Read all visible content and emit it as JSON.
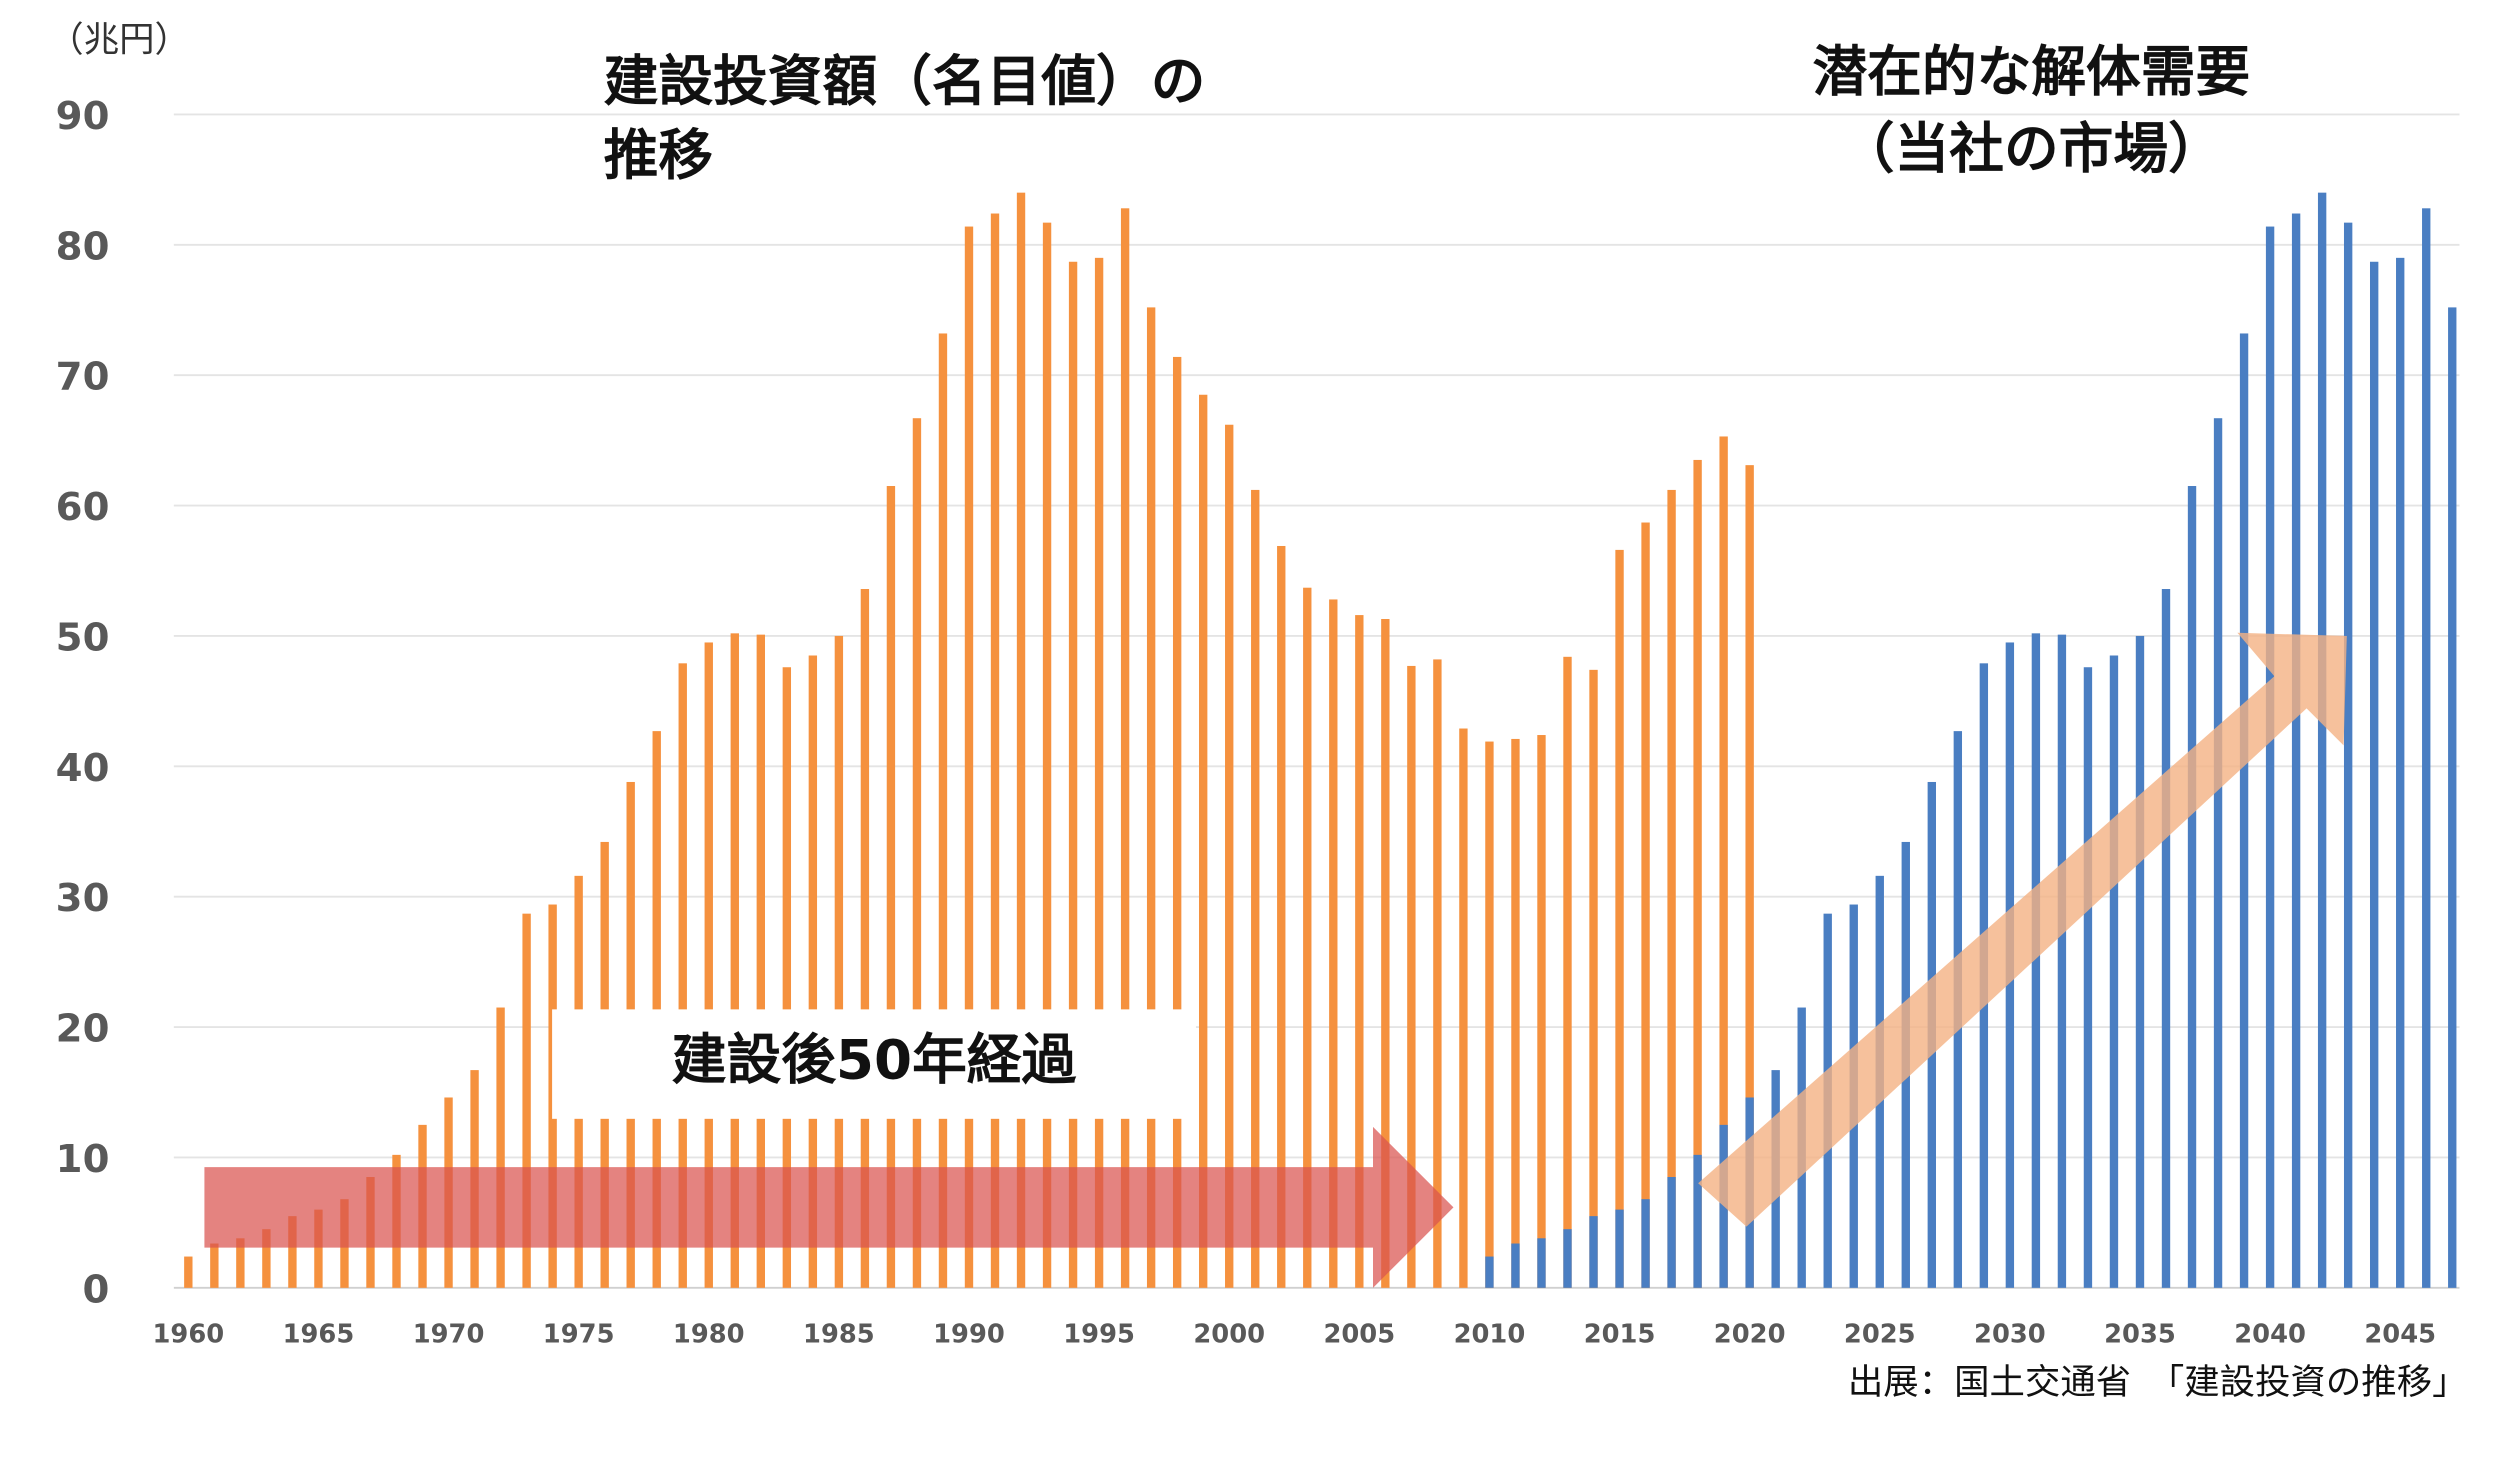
{
  "chart_data": {
    "type": "bar",
    "unit_label": "（兆円）",
    "title_left_line1": "建設投資額（名目値）の",
    "title_left_line2": "推移",
    "title_right_line1": "潜在的な解体需要",
    "title_right_line2": "（当社の市場）",
    "annotation": "建設後50年経過",
    "source": "出展：国土交通省　「建設投資の推移」",
    "ylim": [
      0,
      90
    ],
    "yticks": [
      "0",
      "10",
      "20",
      "30",
      "40",
      "50",
      "60",
      "70",
      "80",
      "90"
    ],
    "xticks": [
      "1960",
      "1965",
      "1970",
      "1975",
      "1980",
      "1985",
      "1990",
      "1995",
      "2000",
      "2005",
      "2010",
      "2015",
      "2020",
      "2025",
      "2030",
      "2035",
      "2040",
      "2045"
    ],
    "grid": true,
    "colors": {
      "investment": "#F5913E",
      "demand": "#4A7EC2",
      "arrow_red": "#D9534F",
      "arrow_peach": "#F4B183"
    },
    "series": [
      {
        "name": "建設投資額（名目値）",
        "start_year": 1960,
        "values": [
          2.4,
          3.4,
          3.8,
          4.5,
          5.5,
          6.0,
          6.8,
          8.5,
          10.2,
          12.5,
          14.6,
          16.7,
          21.5,
          28.7,
          29.4,
          31.6,
          34.2,
          38.8,
          42.7,
          47.9,
          49.5,
          50.2,
          50.1,
          47.6,
          48.5,
          50.0,
          53.6,
          61.5,
          66.7,
          73.2,
          81.4,
          82.4,
          84.0,
          81.7,
          78.7,
          79.0,
          82.8,
          75.2,
          71.4,
          68.5,
          66.2,
          61.2,
          56.9,
          53.7,
          52.8,
          51.6,
          51.3,
          47.7,
          48.2,
          42.9,
          41.9,
          42.1,
          42.4,
          48.4,
          47.4,
          56.6,
          58.7,
          61.2,
          63.5,
          65.3,
          63.1
        ]
      },
      {
        "name": "潜在的な解体需要",
        "start_year": 2010,
        "values": [
          2.4,
          3.4,
          3.8,
          4.5,
          5.5,
          6.0,
          6.8,
          8.5,
          10.2,
          12.5,
          14.6,
          16.7,
          21.5,
          28.7,
          29.4,
          31.6,
          34.2,
          38.8,
          42.7,
          47.9,
          49.5,
          50.2,
          50.1,
          47.6,
          48.5,
          50.0,
          53.6,
          61.5,
          66.7,
          73.2,
          81.4,
          82.4,
          84.0,
          81.7,
          78.7,
          79.0,
          82.8,
          75.2
        ]
      }
    ]
  }
}
